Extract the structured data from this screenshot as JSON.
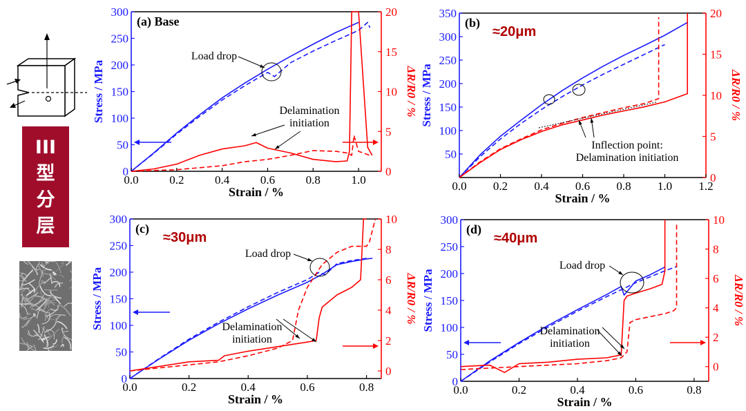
{
  "sidebar": {
    "mode_chars": [
      "III",
      "型",
      "分",
      "层"
    ],
    "mode_color": "#a00d2b"
  },
  "colors": {
    "stress": "#1a1aff",
    "resistance": "#ff0000",
    "annotation": "#b00000"
  },
  "chart_data": [
    {
      "panel": "(a)",
      "type": "line",
      "title": "(a) Base",
      "tag": "",
      "xlabel": "Strain / %",
      "ylabel_left": "Stress / MPa",
      "ylabel_right": "ΔR/R0 / %",
      "xlim": [
        0,
        1.1
      ],
      "xticks": [
        0.0,
        0.2,
        0.4,
        0.6,
        0.8,
        1.0
      ],
      "ylim_left": [
        0,
        300
      ],
      "yticks_left": [
        0,
        50,
        100,
        150,
        200,
        250,
        300
      ],
      "ylim_right": [
        0,
        20
      ],
      "yticks_right": [
        0,
        5,
        10,
        15,
        20
      ],
      "series": [
        {
          "axis": "left",
          "style": "solid",
          "x": [
            0.0,
            0.1,
            0.2,
            0.3,
            0.4,
            0.5,
            0.6,
            0.7,
            0.8,
            0.9,
            1.0
          ],
          "y": [
            0,
            35,
            72,
            106,
            138,
            166,
            192,
            216,
            239,
            261,
            280
          ]
        },
        {
          "axis": "left",
          "style": "dashed",
          "x": [
            0.0,
            0.1,
            0.2,
            0.3,
            0.4,
            0.5,
            0.6,
            0.63,
            0.7,
            0.8,
            0.9,
            1.0,
            1.04,
            1.05
          ],
          "y": [
            0,
            34,
            70,
            103,
            134,
            161,
            186,
            178,
            204,
            226,
            246,
            265,
            280,
            270
          ]
        },
        {
          "axis": "right",
          "style": "solid",
          "x": [
            0.0,
            0.1,
            0.2,
            0.3,
            0.4,
            0.5,
            0.55,
            0.6,
            0.7,
            0.8,
            0.9,
            0.95,
            0.96,
            0.97,
            1.0,
            1.04,
            1.06
          ],
          "y": [
            0,
            0.3,
            0.9,
            2.0,
            2.8,
            3.2,
            3.6,
            2.9,
            2.3,
            1.5,
            1.2,
            1.3,
            2.5,
            20,
            20,
            3.0,
            2.0
          ]
        },
        {
          "axis": "right",
          "style": "dashed",
          "x": [
            0.0,
            0.2,
            0.4,
            0.5,
            0.6,
            0.7,
            0.8,
            0.9,
            0.95,
            0.97,
            0.98,
            1.0,
            1.05
          ],
          "y": [
            0,
            0.2,
            0.7,
            1.2,
            1.5,
            2.0,
            2.6,
            2.5,
            2.3,
            2.0,
            4.5,
            2.5,
            2.0
          ]
        }
      ],
      "annotations": [
        "Load drop",
        "Delamination\ninitiation"
      ]
    },
    {
      "panel": "(b)",
      "type": "line",
      "title": "(b)",
      "tag": "≈20μm",
      "xlabel": "Strain / %",
      "ylabel_left": "Stress / MPa",
      "ylabel_right": "ΔR/R0 / %",
      "xlim": [
        0,
        1.2
      ],
      "xticks": [
        0.0,
        0.2,
        0.4,
        0.6,
        0.8,
        1.0,
        1.2
      ],
      "ylim_left": [
        0,
        350
      ],
      "yticks_left": [
        50,
        100,
        150,
        200,
        250,
        300,
        350
      ],
      "ylim_right": [
        0,
        20
      ],
      "yticks_right": [
        0,
        5,
        10,
        15,
        20
      ],
      "series": [
        {
          "axis": "left",
          "style": "solid",
          "x": [
            0.0,
            0.1,
            0.2,
            0.3,
            0.4,
            0.5,
            0.6,
            0.7,
            0.8,
            0.9,
            1.0,
            1.11
          ],
          "y": [
            0,
            48,
            88,
            122,
            155,
            185,
            212,
            237,
            260,
            281,
            303,
            330
          ]
        },
        {
          "axis": "left",
          "style": "dashed",
          "x": [
            0.0,
            0.1,
            0.2,
            0.3,
            0.4,
            0.5,
            0.6,
            0.7,
            0.8,
            0.9,
            1.0
          ],
          "y": [
            0,
            44,
            82,
            115,
            145,
            172,
            197,
            220,
            241,
            262,
            283
          ]
        },
        {
          "axis": "right",
          "style": "solid",
          "x": [
            0.0,
            0.1,
            0.2,
            0.3,
            0.4,
            0.5,
            0.6,
            0.7,
            0.8,
            0.9,
            1.0,
            1.11,
            1.11
          ],
          "y": [
            0,
            1.8,
            3.4,
            4.6,
            5.6,
            6.4,
            7.0,
            7.6,
            8.1,
            8.6,
            9.2,
            10.2,
            20
          ]
        },
        {
          "axis": "right",
          "style": "dashed",
          "x": [
            0.0,
            0.1,
            0.2,
            0.3,
            0.4,
            0.5,
            0.6,
            0.7,
            0.8,
            0.9,
            0.97,
            0.97
          ],
          "y": [
            0,
            1.9,
            3.5,
            4.7,
            5.8,
            6.6,
            7.3,
            7.9,
            8.5,
            9.0,
            9.6,
            19.5
          ]
        }
      ],
      "annotations": [
        "Inflection point:\nDelamination initiation"
      ]
    },
    {
      "panel": "(c)",
      "type": "line",
      "title": "(c)",
      "tag": "≈30μm",
      "xlabel": "Strain / %",
      "ylabel_left": "Stress / MPa",
      "ylabel_right": "ΔR/R0 / %",
      "xlim": [
        0,
        0.85
      ],
      "xticks": [
        0.0,
        0.2,
        0.4,
        0.6,
        0.8
      ],
      "ylim_left": [
        0,
        300
      ],
      "yticks_left": [
        0,
        50,
        100,
        150,
        200,
        250,
        300
      ],
      "ylim_right": [
        -0.5,
        10
      ],
      "yticks_right": [
        0,
        2,
        4,
        6,
        8,
        10
      ],
      "series": [
        {
          "axis": "left",
          "style": "solid",
          "x": [
            0.0,
            0.1,
            0.2,
            0.3,
            0.4,
            0.5,
            0.6,
            0.65,
            0.7,
            0.75,
            0.8,
            0.82
          ],
          "y": [
            0,
            37,
            72,
            103,
            131,
            157,
            181,
            196,
            214,
            220,
            225,
            226
          ]
        },
        {
          "axis": "left",
          "style": "dashed",
          "x": [
            0.0,
            0.1,
            0.2,
            0.3,
            0.4,
            0.5,
            0.6,
            0.64,
            0.66,
            0.7,
            0.75,
            0.8
          ],
          "y": [
            0,
            38,
            74,
            106,
            135,
            162,
            186,
            200,
            195,
            216,
            222,
            226
          ]
        },
        {
          "axis": "right",
          "style": "solid",
          "x": [
            0.0,
            0.1,
            0.2,
            0.3,
            0.32,
            0.4,
            0.5,
            0.6,
            0.63,
            0.64,
            0.65,
            0.7,
            0.75,
            0.78,
            0.79,
            0.8
          ],
          "y": [
            0,
            0.3,
            0.6,
            0.7,
            1.0,
            1.3,
            1.6,
            1.9,
            2.0,
            3.5,
            4.2,
            5.0,
            5.5,
            6.0,
            10,
            10
          ]
        },
        {
          "axis": "right",
          "style": "dashed",
          "x": [
            0.0,
            0.1,
            0.2,
            0.3,
            0.4,
            0.5,
            0.55,
            0.57,
            0.6,
            0.65,
            0.7,
            0.75,
            0.8,
            0.81,
            0.83
          ],
          "y": [
            0,
            0.2,
            0.4,
            0.6,
            1.0,
            1.5,
            2.0,
            4.0,
            5.5,
            7.0,
            7.8,
            8.2,
            8.2,
            8.5,
            10
          ]
        }
      ],
      "annotations": [
        "Load drop",
        "Delamination\ninitiation"
      ]
    },
    {
      "panel": "(d)",
      "type": "line",
      "title": "(d)",
      "tag": "≈40μm",
      "xlabel": "Strain / %",
      "ylabel_left": "Stress / MPa",
      "ylabel_right": "ΔR/R0 / %",
      "xlim": [
        0,
        0.85
      ],
      "xticks": [
        0.0,
        0.2,
        0.4,
        0.6,
        0.8
      ],
      "ylim_left": [
        0,
        300
      ],
      "yticks_left": [
        0,
        50,
        100,
        150,
        200,
        250,
        300
      ],
      "ylim_right": [
        -1,
        10
      ],
      "yticks_right": [
        0,
        2,
        4,
        6,
        8,
        10
      ],
      "series": [
        {
          "axis": "left",
          "style": "solid",
          "x": [
            0.0,
            0.1,
            0.2,
            0.3,
            0.4,
            0.5,
            0.55,
            0.56,
            0.6,
            0.65,
            0.7
          ],
          "y": [
            0,
            38,
            72,
            104,
            133,
            161,
            176,
            160,
            186,
            198,
            212
          ]
        },
        {
          "axis": "left",
          "style": "dashed",
          "x": [
            0.0,
            0.1,
            0.2,
            0.3,
            0.4,
            0.5,
            0.6,
            0.7,
            0.74
          ],
          "y": [
            0,
            36,
            70,
            101,
            130,
            157,
            183,
            205,
            213
          ]
        },
        {
          "axis": "right",
          "style": "solid",
          "x": [
            0.0,
            0.1,
            0.15,
            0.2,
            0.3,
            0.4,
            0.5,
            0.55,
            0.56,
            0.57,
            0.6,
            0.65,
            0.69,
            0.7,
            0.7
          ],
          "y": [
            0,
            0.1,
            -0.4,
            0.2,
            0.3,
            0.5,
            0.6,
            0.8,
            4.5,
            4.8,
            5.0,
            5.3,
            5.6,
            6.5,
            10
          ]
        },
        {
          "axis": "right",
          "style": "dashed",
          "x": [
            0.0,
            0.1,
            0.2,
            0.3,
            0.4,
            0.5,
            0.55,
            0.57,
            0.58,
            0.6,
            0.65,
            0.7,
            0.73,
            0.74,
            0.74
          ],
          "y": [
            -0.2,
            -0.1,
            0.0,
            0.1,
            0.2,
            0.4,
            0.6,
            1.0,
            3.0,
            3.2,
            3.4,
            3.6,
            3.8,
            4.0,
            9.8
          ]
        }
      ],
      "annotations": [
        "Load drop",
        "Delamination\ninitiation"
      ]
    }
  ]
}
